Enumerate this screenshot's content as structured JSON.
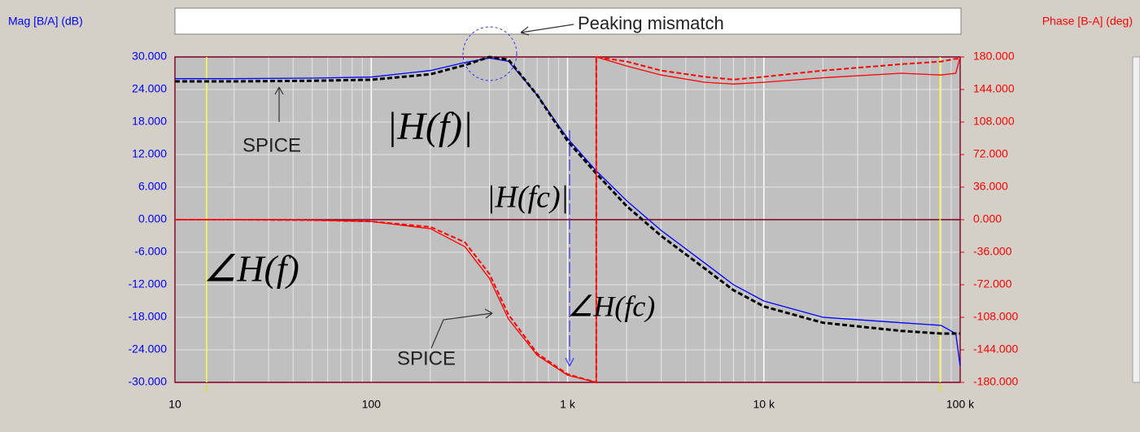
{
  "chart_data": {
    "type": "line",
    "y_label": "Mag [B/A] (dB)",
    "y2_label": "Phase [B-A] (deg)",
    "x_scale": "log",
    "grid": true,
    "x": [
      10,
      20,
      50,
      100,
      200,
      300,
      400,
      500,
      700,
      1000,
      1400,
      1400,
      2000,
      3000,
      5000,
      7000,
      10000,
      20000,
      50000,
      80000,
      95000,
      100000
    ],
    "series": [
      {
        "color": "#0000ff",
        "dashed": false,
        "axis": "y",
        "values": [
          26,
          26,
          26.1,
          26.3,
          27.5,
          29,
          29.8,
          29.2,
          23,
          15,
          9,
          9,
          3.5,
          -2,
          -8,
          -12,
          -15,
          -18,
          -19,
          -19.5,
          -21,
          -27
        ]
      },
      {
        "color": "#000000",
        "dashed": true,
        "axis": "y",
        "values": [
          25.5,
          25.5,
          25.6,
          25.8,
          26.8,
          28.5,
          30,
          29.5,
          23,
          14.5,
          8.5,
          8.5,
          2.5,
          -3,
          -9,
          -13,
          -16,
          -19,
          -20.5,
          -21,
          -21,
          -21
        ]
      },
      {
        "color": "#ff0000",
        "dashed": false,
        "axis": "y2",
        "values": [
          0,
          0,
          -0.5,
          -2,
          -10,
          -30,
          -65,
          -110,
          -150,
          -172,
          -180,
          180,
          170,
          160,
          152,
          150,
          152,
          157,
          162,
          160,
          162,
          180
        ]
      },
      {
        "color": "#ff0000",
        "dashed": true,
        "axis": "y2",
        "values": [
          0,
          0,
          -0.5,
          -2,
          -8,
          -25,
          -60,
          -105,
          -148,
          -171,
          -180,
          180,
          175,
          165,
          158,
          155,
          158,
          165,
          172,
          175,
          178,
          178
        ]
      }
    ],
    "xlim": [
      10,
      100000
    ],
    "xticks": [
      10,
      100,
      {
        "value": 1000,
        "label": "1 k"
      },
      {
        "value": 10000,
        "label": "10 k"
      },
      {
        "value": 100000,
        "label": "100 k"
      }
    ],
    "ylim": [
      -30,
      30
    ],
    "yticks": [
      {
        "value": 30,
        "label": "30.000"
      },
      {
        "value": 24,
        "label": "24.000"
      },
      {
        "value": 18,
        "label": "18.000"
      },
      {
        "value": 12,
        "label": "12.000"
      },
      {
        "value": 6,
        "label": "6.000"
      },
      {
        "value": 0,
        "label": "0.000"
      },
      {
        "value": -6,
        "label": "-6.000"
      },
      {
        "value": -12,
        "label": "-12.000"
      },
      {
        "value": -18,
        "label": "-18.000"
      },
      {
        "value": -24,
        "label": "-24.000"
      },
      {
        "value": -30,
        "label": "-30.000"
      }
    ],
    "y2lim": [
      -180,
      180
    ],
    "y2ticks": [
      {
        "value": 180,
        "label": "180.000"
      },
      {
        "value": 144,
        "label": "144.000"
      },
      {
        "value": 108,
        "label": "108.000"
      },
      {
        "value": 72,
        "label": "72.000"
      },
      {
        "value": 36,
        "label": "36.000"
      },
      {
        "value": 0,
        "label": "0.000"
      },
      {
        "value": -36,
        "label": "-36.000"
      },
      {
        "value": -72,
        "label": "-72.000"
      },
      {
        "value": -108,
        "label": "-108.000"
      },
      {
        "value": -144,
        "label": "-144.000"
      },
      {
        "value": -180,
        "label": "-180.000"
      }
    ],
    "cursors": [
      {
        "label": "1",
        "x": 14.5
      },
      {
        "label": "2",
        "x": 79000
      }
    ],
    "annotations": [
      "Peaking mismatch",
      "SPICE",
      "SPICE",
      "|H(f)|",
      "|H(fc)|",
      "∠H(f)",
      "∠H(fc)"
    ]
  }
}
